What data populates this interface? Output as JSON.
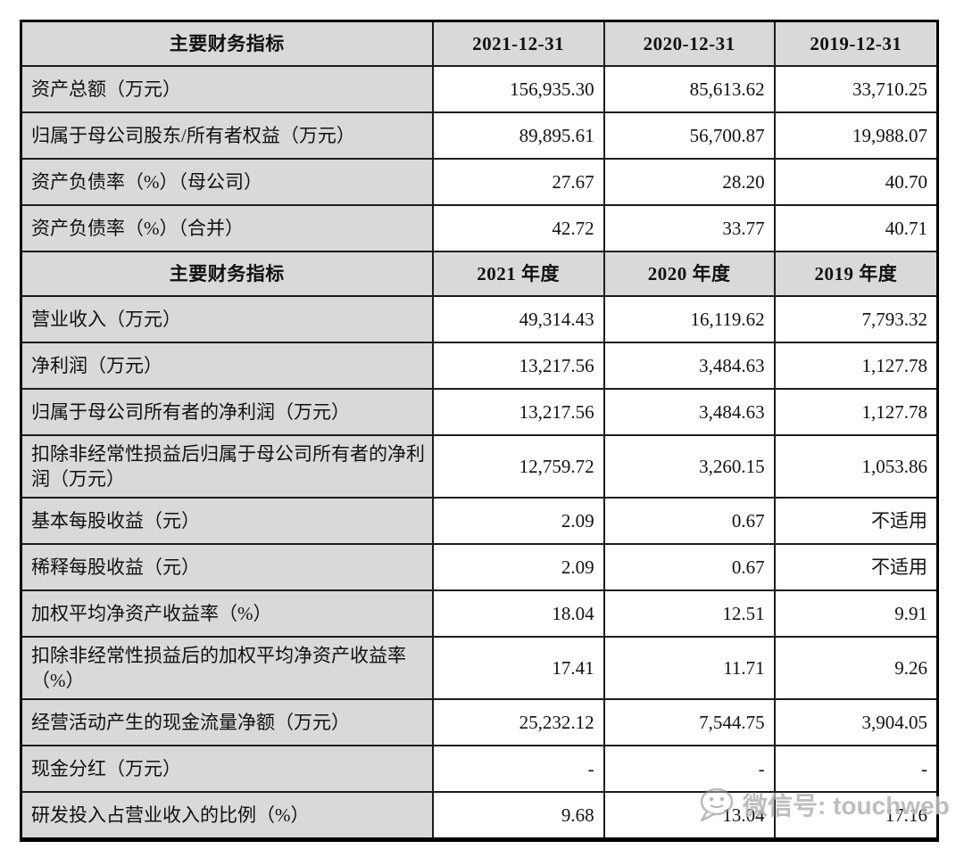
{
  "colors": {
    "header_bg": "#d9d9d9",
    "label_bg": "#d9d9d9",
    "cell_bg": "#ffffff",
    "border": "#000000",
    "text": "#111111",
    "watermark": "#969696"
  },
  "table": {
    "sections": [
      {
        "header_label": "主要财务指标",
        "header_cols": [
          "2021-12-31",
          "2020-12-31",
          "2019-12-31"
        ],
        "rows": [
          {
            "label": "资产总额（万元）",
            "values": [
              "156,935.30",
              "85,613.62",
              "33,710.25"
            ]
          },
          {
            "label": "归属于母公司股东/所有者权益（万元）",
            "values": [
              "89,895.61",
              "56,700.87",
              "19,988.07"
            ]
          },
          {
            "label": "资产负债率（%）（母公司）",
            "values": [
              "27.67",
              "28.20",
              "40.70"
            ]
          },
          {
            "label": "资产负债率（%）（合并）",
            "values": [
              "42.72",
              "33.77",
              "40.71"
            ]
          }
        ]
      },
      {
        "header_label": "主要财务指标",
        "header_cols": [
          "2021 年度",
          "2020 年度",
          "2019 年度"
        ],
        "rows": [
          {
            "label": "营业收入（万元）",
            "values": [
              "49,314.43",
              "16,119.62",
              "7,793.32"
            ]
          },
          {
            "label": "净利润（万元）",
            "values": [
              "13,217.56",
              "3,484.63",
              "1,127.78"
            ]
          },
          {
            "label": "归属于母公司所有者的净利润（万元）",
            "values": [
              "13,217.56",
              "3,484.63",
              "1,127.78"
            ]
          },
          {
            "label": "扣除非经常性损益后归属于母公司所有者的净利润（万元）",
            "values": [
              "12,759.72",
              "3,260.15",
              "1,053.86"
            ],
            "tall": true
          },
          {
            "label": "基本每股收益（元）",
            "values": [
              "2.09",
              "0.67",
              "不适用"
            ]
          },
          {
            "label": "稀释每股收益（元）",
            "values": [
              "2.09",
              "0.67",
              "不适用"
            ]
          },
          {
            "label": "加权平均净资产收益率（%）",
            "values": [
              "18.04",
              "12.51",
              "9.91"
            ]
          },
          {
            "label": "扣除非经常性损益后的加权平均净资产收益率（%）",
            "values": [
              "17.41",
              "11.71",
              "9.26"
            ],
            "tall": true
          },
          {
            "label": "经营活动产生的现金流量净额（万元）",
            "values": [
              "25,232.12",
              "7,544.75",
              "3,904.05"
            ]
          },
          {
            "label": "现金分红（万元）",
            "values": [
              "-",
              "-",
              "-"
            ]
          },
          {
            "label": "研发投入占营业收入的比例（%）",
            "values": [
              "9.68",
              "13.04",
              "17.16"
            ]
          }
        ]
      }
    ]
  },
  "watermark": {
    "icon": "wechat-icon",
    "text": "微信号: touchweb"
  }
}
